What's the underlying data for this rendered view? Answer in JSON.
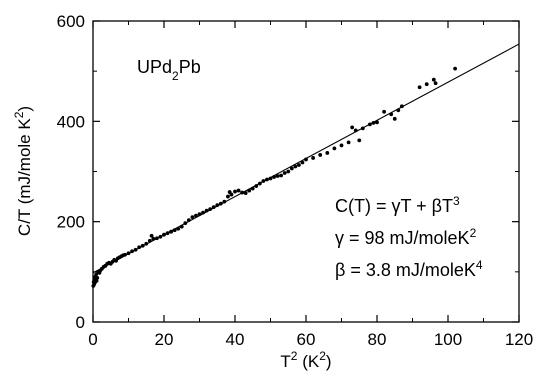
{
  "chart_data": {
    "type": "scatter",
    "sample_label": {
      "base": "UPd",
      "sub": "2",
      "tail": "Pb"
    },
    "xlabel": {
      "base": "T",
      "sup": "2",
      "tail": " (K",
      "sup2": "2",
      "end": ")"
    },
    "ylabel": {
      "base": "C/T (mJ/mole K",
      "sup": "2",
      "end": ")"
    },
    "xlim": [
      0,
      120
    ],
    "ylim": [
      0,
      600
    ],
    "xticks": [
      0,
      20,
      40,
      60,
      80,
      100,
      120
    ],
    "yticks": [
      0,
      200,
      400,
      600
    ],
    "grid": false,
    "annotations": [
      {
        "base": "C(T) = γT + βT",
        "sup": "3"
      },
      {
        "base": "γ = 98 mJ/moleK",
        "sup": "2"
      },
      {
        "base": "β = 3.8 mJ/moleK",
        "sup": "4"
      }
    ],
    "fit": {
      "intercept": 98,
      "slope": 3.8,
      "x": [
        0,
        120
      ]
    },
    "series": [
      {
        "points": [
          [
            0.1,
            72
          ],
          [
            0.2,
            80
          ],
          [
            0.3,
            75
          ],
          [
            0.4,
            86
          ],
          [
            0.5,
            78
          ],
          [
            0.6,
            90
          ],
          [
            0.7,
            84
          ],
          [
            0.9,
            95
          ],
          [
            1.0,
            82
          ],
          [
            1.2,
            88
          ],
          [
            1.5,
            100
          ],
          [
            1.8,
            98
          ],
          [
            2.0,
            102
          ],
          [
            2.5,
            106
          ],
          [
            3.0,
            110
          ],
          [
            3.5,
            112
          ],
          [
            4.0,
            116
          ],
          [
            4.5,
            118
          ],
          [
            5.0,
            116
          ],
          [
            5.5,
            120
          ],
          [
            6.0,
            124
          ],
          [
            6.5,
            122
          ],
          [
            7.0,
            127
          ],
          [
            7.5,
            129
          ],
          [
            8.0,
            131
          ],
          [
            8.5,
            133
          ],
          [
            9.0,
            134
          ],
          [
            10.0,
            137
          ],
          [
            11.0,
            141
          ],
          [
            12.0,
            144
          ],
          [
            13.0,
            149
          ],
          [
            14.0,
            152
          ],
          [
            15.0,
            156
          ],
          [
            16.0,
            162
          ],
          [
            16.5,
            172
          ],
          [
            17.0,
            166
          ],
          [
            18.0,
            167
          ],
          [
            19.0,
            170
          ],
          [
            20.0,
            174
          ],
          [
            21.0,
            177
          ],
          [
            22.0,
            180
          ],
          [
            23.0,
            183
          ],
          [
            24.0,
            186
          ],
          [
            25.0,
            190
          ],
          [
            26.0,
            197
          ],
          [
            27.0,
            203
          ],
          [
            28.0,
            209
          ],
          [
            29.0,
            212
          ],
          [
            30.0,
            215
          ],
          [
            31.0,
            218
          ],
          [
            32.0,
            222
          ],
          [
            33.0,
            225
          ],
          [
            34.0,
            229
          ],
          [
            35.0,
            233
          ],
          [
            36.0,
            236
          ],
          [
            37.0,
            240
          ],
          [
            38.0,
            250
          ],
          [
            38.5,
            259
          ],
          [
            39.0,
            254
          ],
          [
            40.0,
            260
          ],
          [
            41.0,
            262
          ],
          [
            42.0,
            258
          ],
          [
            43.0,
            257
          ],
          [
            44.0,
            262
          ],
          [
            45.0,
            266
          ],
          [
            46.0,
            271
          ],
          [
            47.0,
            276
          ],
          [
            48.0,
            281
          ],
          [
            49.0,
            284
          ],
          [
            50.0,
            286
          ],
          [
            51.0,
            289
          ],
          [
            52.0,
            291
          ],
          [
            53.0,
            292
          ],
          [
            54.0,
            297
          ],
          [
            55.0,
            300
          ],
          [
            56.0,
            306
          ],
          [
            57.0,
            310
          ],
          [
            58.0,
            313
          ],
          [
            59.0,
            318
          ],
          [
            60.0,
            324
          ],
          [
            62.0,
            327
          ],
          [
            64.0,
            333
          ],
          [
            66.0,
            337
          ],
          [
            68.0,
            346
          ],
          [
            70.0,
            352
          ],
          [
            72.0,
            358
          ],
          [
            73.0,
            388
          ],
          [
            74.0,
            382
          ],
          [
            75.0,
            362
          ],
          [
            76.0,
            386
          ],
          [
            78.0,
            394
          ],
          [
            79.0,
            397
          ],
          [
            80.0,
            398
          ],
          [
            82.0,
            419
          ],
          [
            84.0,
            414
          ],
          [
            85.0,
            405
          ],
          [
            86.0,
            422
          ],
          [
            87.0,
            430
          ],
          [
            92.0,
            468
          ],
          [
            94.0,
            474
          ],
          [
            96.0,
            483
          ],
          [
            96.5,
            476
          ],
          [
            102.0,
            505
          ]
        ]
      }
    ]
  }
}
